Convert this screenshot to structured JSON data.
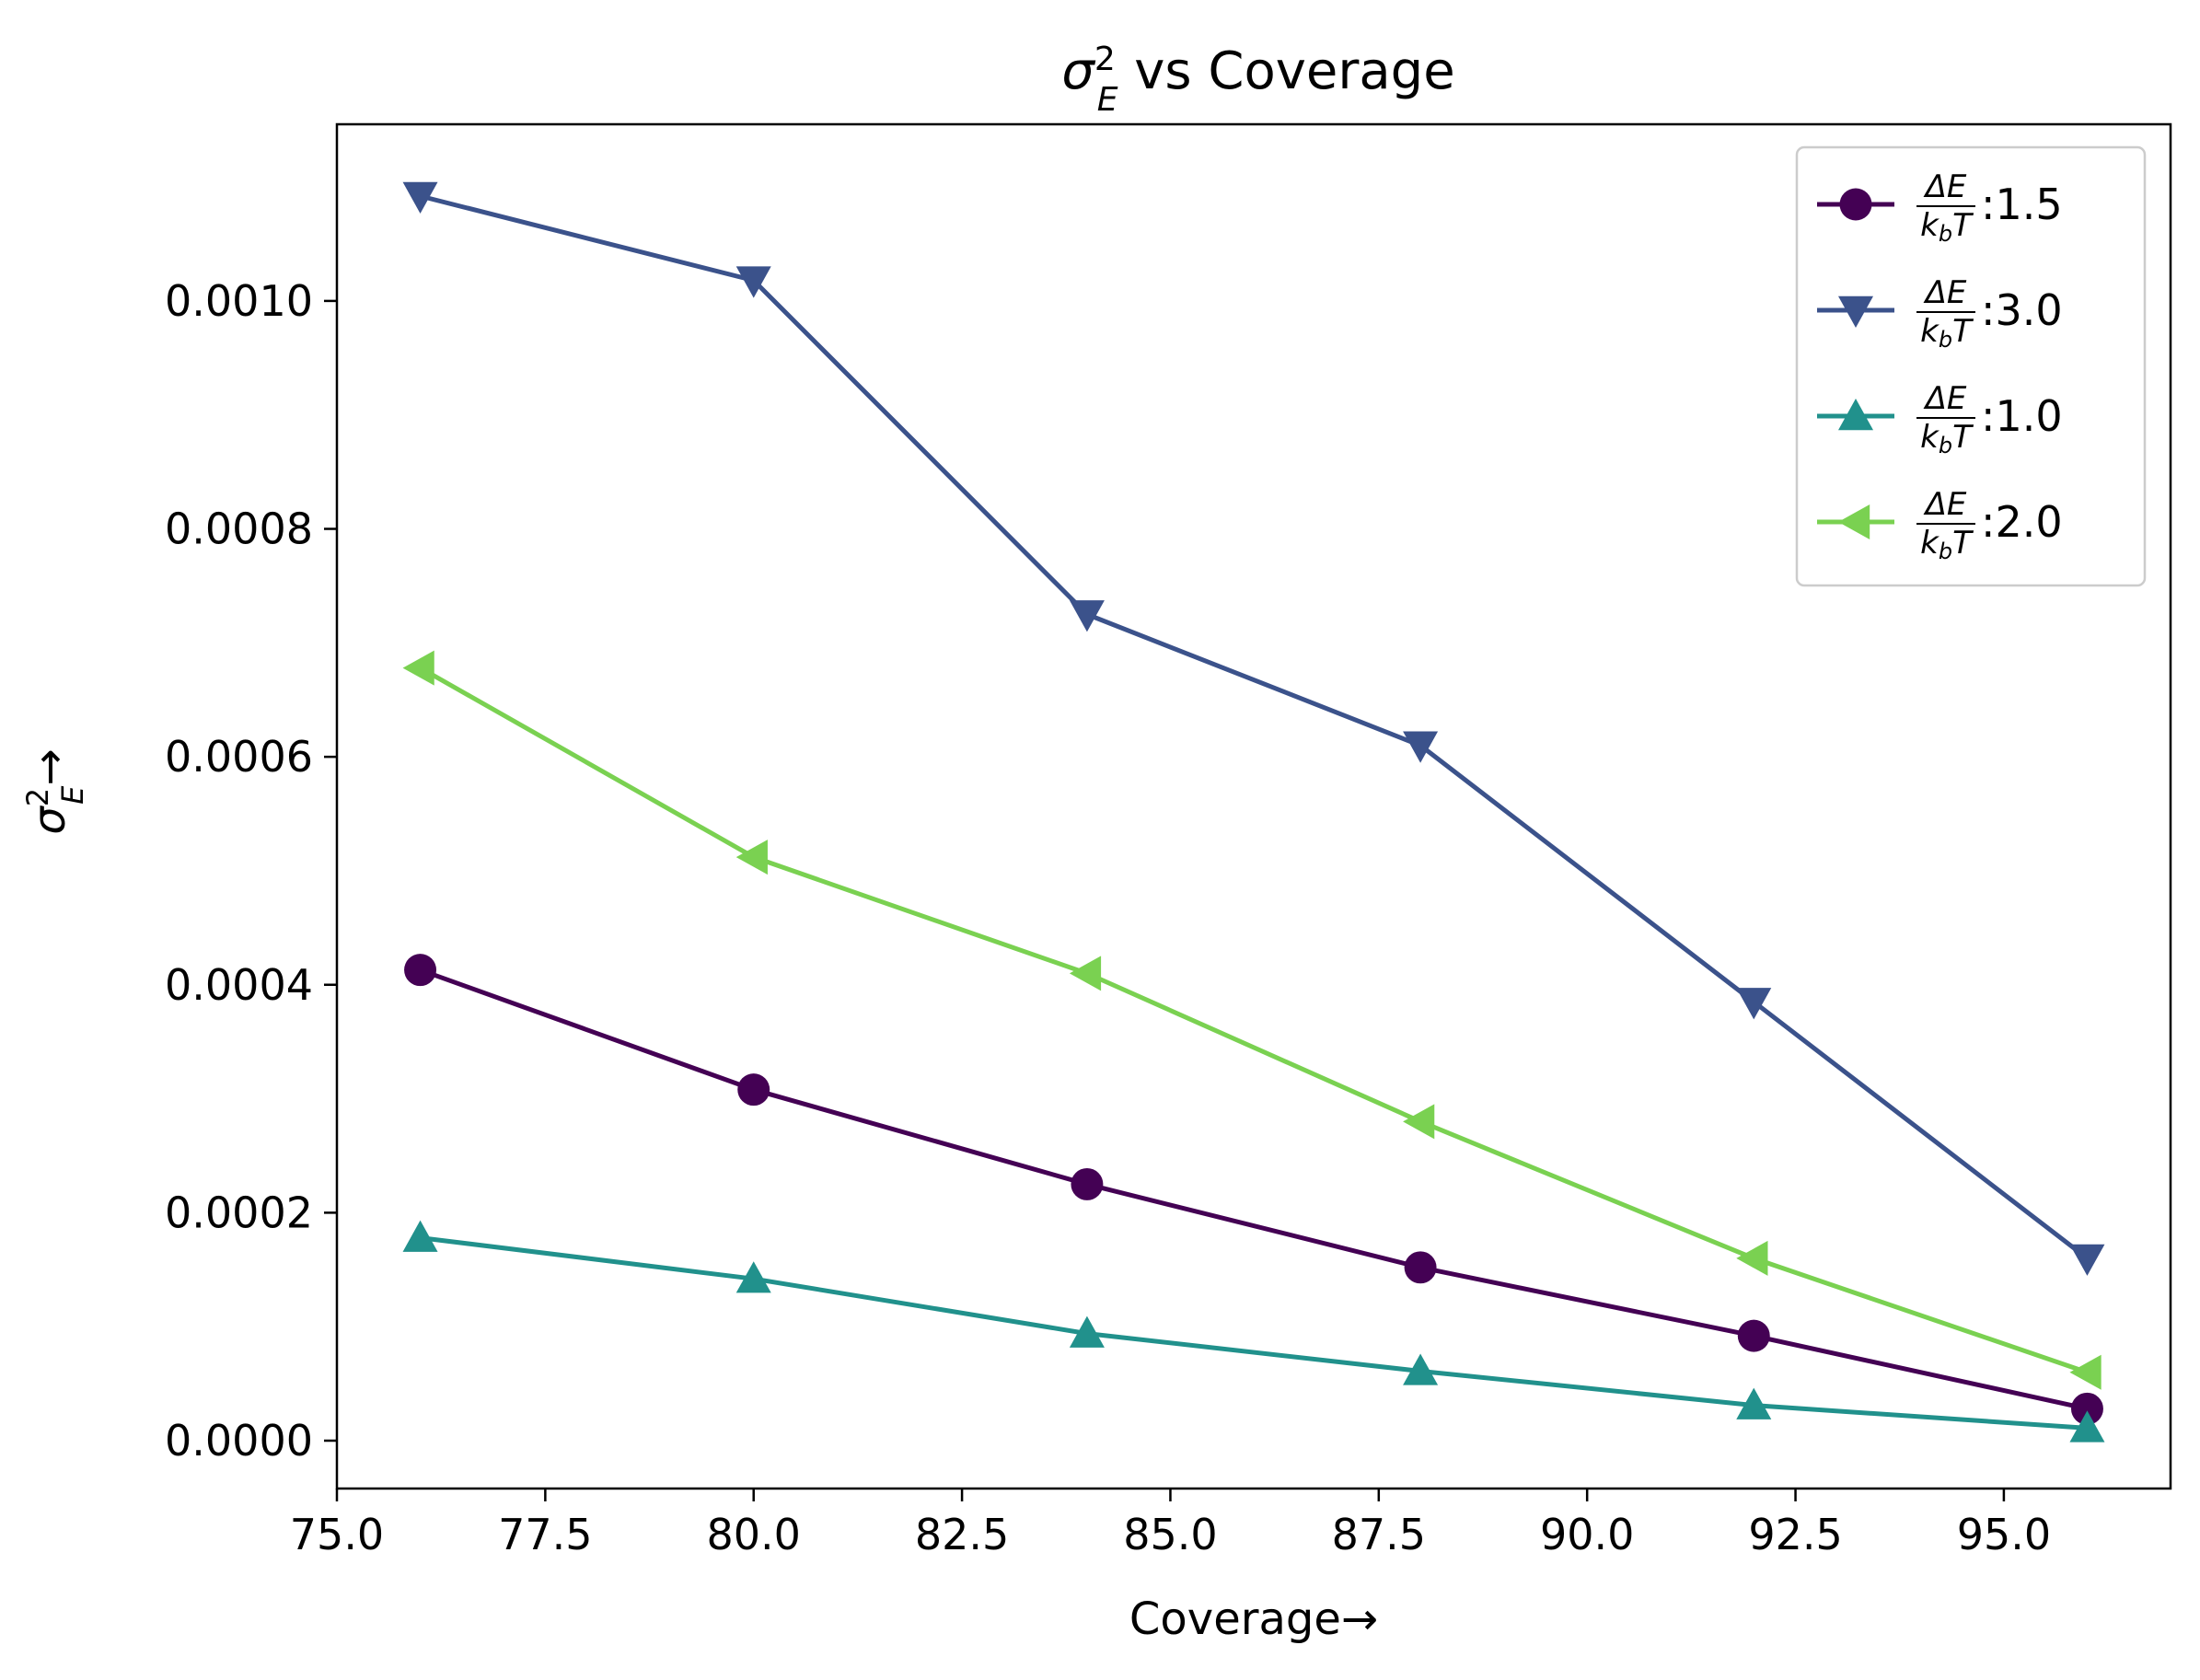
{
  "chart_data": {
    "type": "line",
    "title": {
      "symbol": "σ",
      "superscript": "2",
      "subscript": "E",
      "suffix": " vs Coverage"
    },
    "xlabel": "Coverage→",
    "ylabel": {
      "symbol": "σ",
      "superscript": "2",
      "subscript": "E",
      "suffix": "→"
    },
    "x": [
      76,
      80,
      84,
      88,
      92,
      96
    ],
    "xlim": [
      75.0,
      97.0
    ],
    "ylim": [
      -4.2e-05,
      0.001155
    ],
    "xticks": [
      "75.0",
      "77.5",
      "80.0",
      "82.5",
      "85.0",
      "87.5",
      "90.0",
      "92.5",
      "95.0"
    ],
    "yticks": [
      "0.0000",
      "0.0002",
      "0.0004",
      "0.0006",
      "0.0008",
      "0.0010"
    ],
    "grid": false,
    "legend_position": "top-right",
    "legend_fraction": {
      "numerator": "ΔE",
      "denominator_main": "k",
      "denominator_sub": "b",
      "denominator_tail": "T"
    },
    "series": [
      {
        "name": "1.5",
        "marker": "circle",
        "color": "#440154",
        "values": [
          0.000413,
          0.000308,
          0.000225,
          0.000152,
          9.2e-05,
          2.8e-05
        ]
      },
      {
        "name": "3.0",
        "marker": "triangle-down",
        "color": "#3b528b",
        "values": [
          0.001092,
          0.001018,
          0.000725,
          0.00061,
          0.000385,
          0.00016
        ]
      },
      {
        "name": "1.0",
        "marker": "triangle-up",
        "color": "#21918c",
        "values": [
          0.000178,
          0.000142,
          9.4e-05,
          6.1e-05,
          3.1e-05,
          1.1e-05
        ]
      },
      {
        "name": "2.0",
        "marker": "triangle-left",
        "color": "#7ad151",
        "values": [
          0.000678,
          0.000512,
          0.00041,
          0.00028,
          0.00016,
          6e-05
        ]
      }
    ]
  }
}
